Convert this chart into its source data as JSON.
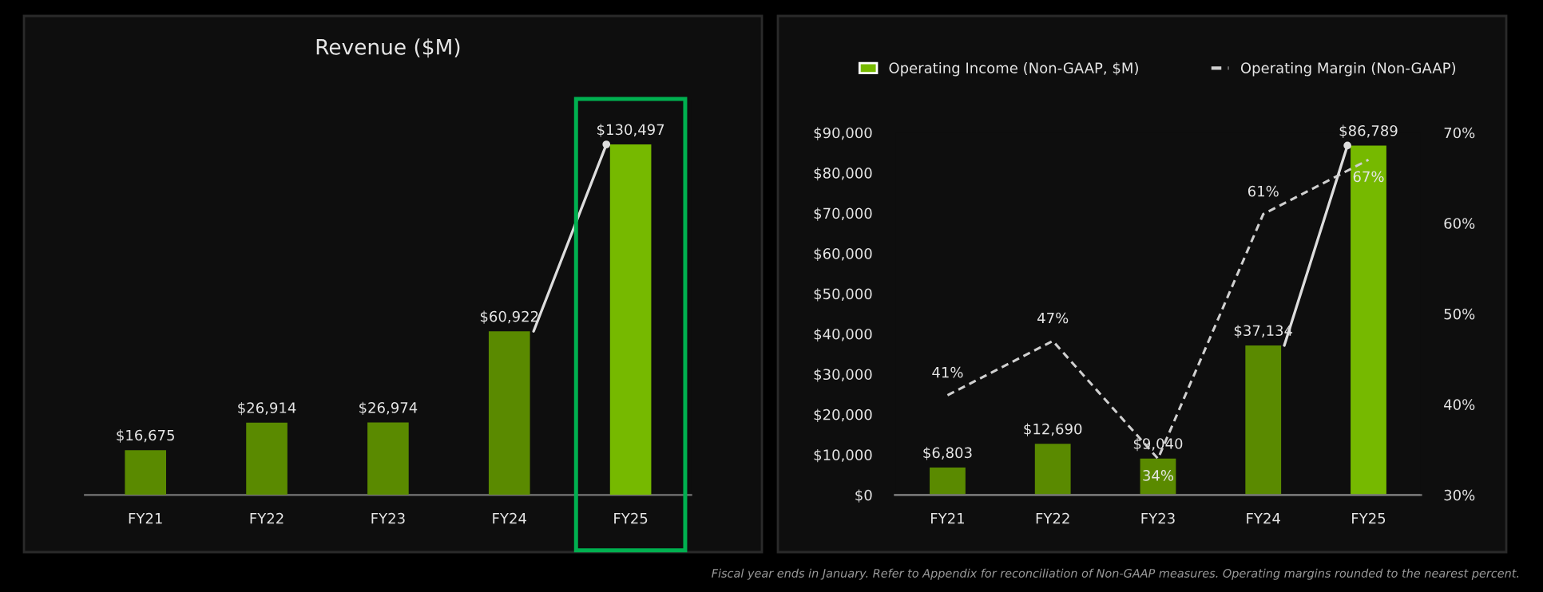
{
  "chart_data": [
    {
      "type": "bar",
      "title": "Revenue ($M)",
      "categories": [
        "FY21",
        "FY22",
        "FY23",
        "FY24",
        "FY25"
      ],
      "values": [
        16675,
        26914,
        26974,
        60922,
        130497
      ],
      "colors": [
        "#5a8a00",
        "#5a8a00",
        "#5a8a00",
        "#5a8a00",
        "#76b900"
      ],
      "value_labels": [
        "$16,675",
        "$26,914",
        "$26,974",
        "$60,922",
        "$130,497"
      ],
      "tick_labels": "x"
    },
    {
      "type": "bar",
      "categories": [
        "FY21",
        "FY22",
        "FY23",
        "FY24",
        "FY25"
      ],
      "series": [
        {
          "name": "Operating Income (Non-GAAP, $M)",
          "type": "bar",
          "color": "#76b900",
          "colors": [
            "#5a8a00",
            "#5a8a00",
            "#5a8a00",
            "#5a8a00",
            "#76b900"
          ],
          "values": [
            6803,
            12690,
            9040,
            37134,
            86789
          ],
          "value_labels": [
            "$6,803",
            "$12,690",
            "$9,040",
            "$37,134",
            "$86,789"
          ]
        },
        {
          "name": "Operating Margin (Non-GAAP)",
          "type": "line",
          "axis": "y2",
          "color": "#d0d0d0",
          "line_style": "dashed",
          "marker": "none",
          "values": [
            41,
            47,
            34,
            61,
            67
          ],
          "value_labels": [
            "41%",
            "47%",
            "34%",
            "61%",
            "67%"
          ]
        }
      ],
      "ylim": [
        0,
        90000
      ],
      "yticks": [
        {
          "value": 0,
          "label": "$0"
        },
        {
          "value": 10000,
          "label": "$10,000"
        },
        {
          "value": 20000,
          "label": "$20,000"
        },
        {
          "value": 30000,
          "label": "$30,000"
        },
        {
          "value": 40000,
          "label": "$40,000"
        },
        {
          "value": 50000,
          "label": "$50,000"
        },
        {
          "value": 60000,
          "label": "$60,000"
        },
        {
          "value": 70000,
          "label": "$70,000"
        },
        {
          "value": 80000,
          "label": "$80,000"
        },
        {
          "value": 90000,
          "label": "$90,000"
        }
      ],
      "y2lim": [
        30,
        70
      ],
      "y2ticks": [
        {
          "value": 30,
          "label": "30%"
        },
        {
          "value": 40,
          "label": "40%"
        },
        {
          "value": 50,
          "label": "50%"
        },
        {
          "value": 60,
          "label": "60%"
        },
        {
          "value": 70,
          "label": "70%"
        }
      ],
      "legend": "top",
      "annotations": [
        "Fiscal year ends in January. Refer to Appendix for reconciliation of Non-GAAP measures. Operating margins rounded to the nearest percent."
      ]
    }
  ]
}
